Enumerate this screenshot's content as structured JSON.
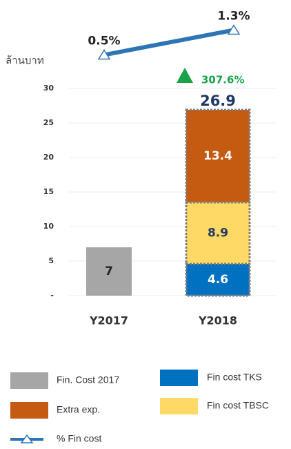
{
  "chart_data": {
    "type": "bar",
    "y_label": "ล้านบาท",
    "categories": [
      "Y2017",
      "Y2018"
    ],
    "series": [
      {
        "name": "Fin. Cost 2017",
        "color": "#a6a6a6",
        "values": [
          7,
          null
        ]
      },
      {
        "name": "Fin cost TKS",
        "color": "#0070c0",
        "values": [
          null,
          4.6
        ]
      },
      {
        "name": "Fin cost TBSC",
        "color": "#ffd966",
        "values": [
          null,
          8.9
        ]
      },
      {
        "name": "Extra exp.",
        "color": "#c55a11",
        "values": [
          null,
          13.4
        ]
      },
      {
        "name": "% Fin cost",
        "type": "line",
        "axis": "y2",
        "color": "#2e75b6",
        "values": [
          0.5,
          1.3
        ],
        "value_labels": [
          "0.5%",
          "1.3%"
        ]
      }
    ],
    "totals": [
      null,
      26.9
    ],
    "annotation": {
      "text": "307.6%",
      "color": "#1aa34a"
    },
    "ylim": [
      0,
      30
    ],
    "yticks": [
      {
        "value": 0,
        "label": "-"
      },
      5,
      10,
      15,
      20,
      25,
      30
    ],
    "y2lim": [
      0,
      2
    ],
    "grid": true
  }
}
